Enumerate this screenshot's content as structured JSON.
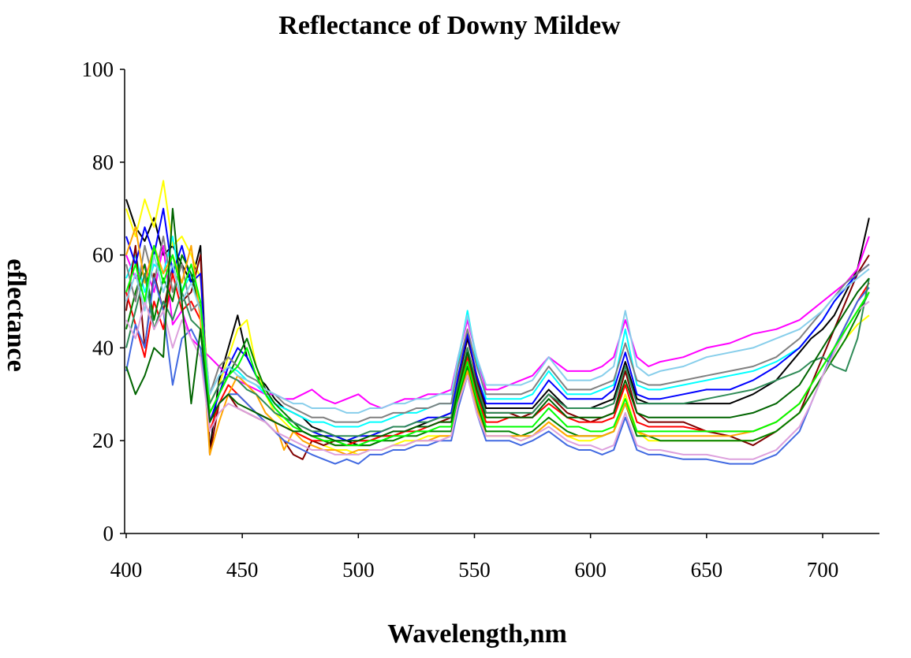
{
  "chart_data": {
    "type": "line",
    "title": "Reflectance of Downy Mildew",
    "xlabel": "Wavelength,nm",
    "ylabel": "eflectance",
    "xlim": [
      400,
      722
    ],
    "ylim": [
      0,
      100
    ],
    "x_ticks": [
      400,
      450,
      500,
      550,
      600,
      650,
      700
    ],
    "y_ticks": [
      0,
      20,
      40,
      60,
      80,
      100
    ],
    "grid": false,
    "legend": "none",
    "wavelengths": [
      400,
      404,
      408,
      412,
      416,
      420,
      424,
      428,
      432,
      436,
      440,
      444,
      448,
      452,
      456,
      460,
      464,
      468,
      472,
      476,
      480,
      485,
      490,
      495,
      500,
      505,
      510,
      515,
      520,
      525,
      530,
      535,
      540,
      543,
      547,
      551,
      555,
      560,
      565,
      570,
      575,
      582,
      590,
      595,
      600,
      605,
      610,
      615,
      620,
      625,
      630,
      640,
      650,
      660,
      670,
      680,
      690,
      695,
      700,
      705,
      710,
      715,
      720
    ],
    "series": [
      {
        "color": "#000000",
        "values": [
          72,
          66,
          63,
          68,
          60,
          62,
          58,
          54,
          62,
          18,
          33,
          40,
          47,
          38,
          34,
          32,
          29,
          27,
          26,
          25,
          23,
          22,
          21,
          20,
          19,
          19,
          20,
          21,
          22,
          23,
          24,
          25,
          26,
          33,
          42,
          34,
          27,
          27,
          27,
          27,
          27,
          31,
          27,
          27,
          27,
          28,
          29,
          37,
          29,
          28,
          28,
          28,
          28,
          28,
          30,
          33,
          39,
          42,
          44,
          47,
          52,
          57,
          68
        ]
      },
      {
        "color": "#ff00ff",
        "values": [
          60,
          55,
          58,
          52,
          62,
          45,
          48,
          42,
          40,
          38,
          36,
          34,
          33,
          32,
          31,
          30,
          30,
          29,
          29,
          30,
          31,
          29,
          28,
          29,
          30,
          28,
          27,
          28,
          29,
          29,
          30,
          30,
          31,
          38,
          46,
          38,
          31,
          31,
          32,
          33,
          34,
          38,
          35,
          35,
          35,
          36,
          38,
          46,
          38,
          36,
          37,
          38,
          40,
          41,
          43,
          44,
          46,
          48,
          50,
          52,
          54,
          57,
          64
        ]
      },
      {
        "color": "#ffff00",
        "values": [
          70,
          64,
          72,
          66,
          76,
          62,
          64,
          60,
          55,
          28,
          32,
          38,
          44,
          46,
          36,
          30,
          26,
          24,
          22,
          21,
          20,
          19,
          18,
          18,
          17,
          18,
          18,
          19,
          20,
          20,
          21,
          21,
          21,
          28,
          36,
          28,
          21,
          21,
          21,
          20,
          21,
          24,
          21,
          20,
          20,
          21,
          22,
          30,
          22,
          20,
          20,
          20,
          20,
          20,
          20,
          22,
          26,
          30,
          34,
          38,
          42,
          45,
          47
        ]
      },
      {
        "color": "#00ffff",
        "values": [
          55,
          60,
          52,
          58,
          56,
          64,
          52,
          56,
          50,
          30,
          34,
          36,
          35,
          33,
          32,
          30,
          28,
          27,
          26,
          25,
          24,
          24,
          23,
          23,
          23,
          24,
          24,
          25,
          26,
          26,
          27,
          28,
          28,
          37,
          48,
          37,
          29,
          29,
          29,
          29,
          30,
          35,
          30,
          30,
          30,
          31,
          32,
          44,
          32,
          31,
          31,
          32,
          33,
          34,
          35,
          37,
          40,
          43,
          46,
          50,
          53,
          56,
          58
        ]
      },
      {
        "color": "#800000",
        "values": [
          48,
          62,
          40,
          56,
          48,
          58,
          50,
          52,
          60,
          17,
          28,
          30,
          27,
          26,
          25,
          24,
          22,
          20,
          17,
          16,
          20,
          19,
          20,
          19,
          20,
          20,
          21,
          21,
          22,
          23,
          23,
          24,
          25,
          33,
          43,
          33,
          26,
          26,
          26,
          25,
          26,
          30,
          26,
          25,
          24,
          25,
          26,
          35,
          26,
          24,
          24,
          24,
          22,
          21,
          19,
          22,
          26,
          32,
          38,
          44,
          50,
          56,
          60
        ]
      },
      {
        "color": "#0000ff",
        "values": [
          64,
          58,
          66,
          60,
          70,
          56,
          62,
          54,
          56,
          24,
          30,
          36,
          40,
          38,
          34,
          30,
          27,
          25,
          24,
          23,
          22,
          21,
          21,
          20,
          21,
          21,
          22,
          23,
          23,
          24,
          25,
          25,
          26,
          34,
          43,
          34,
          28,
          28,
          28,
          28,
          28,
          33,
          29,
          29,
          29,
          29,
          31,
          39,
          30,
          29,
          29,
          30,
          31,
          31,
          33,
          36,
          40,
          43,
          46,
          50,
          53,
          56,
          58
        ]
      },
      {
        "color": "#ff0000",
        "values": [
          52,
          45,
          38,
          50,
          44,
          56,
          48,
          50,
          46,
          22,
          28,
          32,
          30,
          28,
          26,
          25,
          24,
          23,
          22,
          21,
          20,
          20,
          19,
          19,
          20,
          20,
          21,
          21,
          22,
          22,
          23,
          24,
          24,
          31,
          38,
          30,
          24,
          24,
          25,
          25,
          25,
          28,
          25,
          24,
          24,
          24,
          25,
          32,
          24,
          23,
          23,
          23,
          22,
          22,
          22,
          24,
          28,
          32,
          36,
          40,
          45,
          50,
          54
        ]
      },
      {
        "color": "#008000",
        "values": [
          44,
          52,
          58,
          46,
          55,
          50,
          60,
          56,
          48,
          26,
          30,
          34,
          38,
          42,
          36,
          31,
          28,
          26,
          24,
          22,
          21,
          20,
          19,
          19,
          19,
          19,
          20,
          20,
          21,
          21,
          22,
          22,
          22,
          29,
          36,
          28,
          22,
          22,
          22,
          21,
          22,
          25,
          22,
          21,
          21,
          21,
          22,
          28,
          21,
          21,
          20,
          20,
          20,
          20,
          20,
          22,
          26,
          30,
          34,
          38,
          42,
          47,
          52
        ]
      },
      {
        "color": "#808080",
        "values": [
          58,
          50,
          62,
          54,
          64,
          52,
          58,
          48,
          50,
          30,
          36,
          38,
          36,
          34,
          33,
          31,
          30,
          28,
          27,
          26,
          25,
          25,
          24,
          24,
          24,
          25,
          25,
          26,
          26,
          27,
          27,
          28,
          28,
          36,
          44,
          36,
          30,
          30,
          30,
          30,
          31,
          36,
          31,
          31,
          31,
          32,
          33,
          41,
          33,
          32,
          32,
          33,
          34,
          35,
          36,
          38,
          42,
          45,
          48,
          51,
          54,
          56,
          58
        ]
      },
      {
        "color": "#ffa500",
        "values": [
          60,
          66,
          54,
          62,
          56,
          60,
          54,
          62,
          46,
          17,
          24,
          30,
          34,
          32,
          30,
          26,
          24,
          18,
          22,
          20,
          19,
          18,
          18,
          17,
          18,
          18,
          18,
          19,
          19,
          20,
          20,
          21,
          21,
          28,
          35,
          27,
          21,
          21,
          21,
          21,
          21,
          24,
          21,
          21,
          21,
          21,
          22,
          28,
          22,
          21,
          21,
          21,
          21,
          21,
          22,
          24,
          28,
          32,
          36,
          40,
          44,
          48,
          52
        ]
      },
      {
        "color": "#4169e1",
        "values": [
          35,
          45,
          40,
          55,
          48,
          32,
          42,
          44,
          40,
          24,
          28,
          30,
          30,
          28,
          26,
          24,
          22,
          20,
          19,
          18,
          17,
          16,
          15,
          16,
          15,
          17,
          17,
          18,
          18,
          19,
          19,
          20,
          20,
          27,
          34,
          26,
          20,
          20,
          20,
          19,
          20,
          22,
          19,
          18,
          18,
          17,
          18,
          25,
          18,
          17,
          17,
          16,
          16,
          15,
          15,
          17,
          22,
          28,
          34,
          40,
          45,
          50,
          53
        ]
      },
      {
        "color": "#2e8b57",
        "values": [
          40,
          48,
          56,
          44,
          50,
          46,
          52,
          46,
          44,
          28,
          32,
          34,
          33,
          31,
          30,
          28,
          26,
          25,
          24,
          23,
          22,
          22,
          21,
          21,
          21,
          22,
          22,
          23,
          23,
          24,
          24,
          25,
          25,
          32,
          40,
          32,
          26,
          26,
          26,
          26,
          26,
          30,
          27,
          27,
          27,
          27,
          28,
          36,
          28,
          28,
          28,
          28,
          29,
          30,
          31,
          33,
          35,
          37,
          38,
          36,
          35,
          42,
          55
        ]
      },
      {
        "color": "#87ceeb",
        "values": [
          50,
          56,
          48,
          60,
          52,
          58,
          50,
          54,
          48,
          30,
          34,
          36,
          34,
          33,
          32,
          31,
          30,
          29,
          28,
          28,
          27,
          27,
          27,
          26,
          26,
          27,
          27,
          28,
          28,
          29,
          29,
          30,
          30,
          38,
          47,
          38,
          32,
          32,
          32,
          32,
          33,
          38,
          33,
          33,
          33,
          34,
          36,
          48,
          36,
          34,
          35,
          36,
          38,
          39,
          40,
          42,
          44,
          46,
          48,
          51,
          53,
          55,
          57
        ]
      },
      {
        "color": "#dda0dd",
        "values": [
          46,
          42,
          50,
          44,
          48,
          40,
          46,
          42,
          38,
          22,
          26,
          28,
          27,
          26,
          25,
          24,
          22,
          21,
          20,
          19,
          18,
          18,
          17,
          17,
          17,
          18,
          18,
          19,
          19,
          20,
          20,
          20,
          21,
          28,
          34,
          26,
          21,
          21,
          21,
          20,
          21,
          23,
          20,
          19,
          19,
          18,
          19,
          26,
          19,
          18,
          18,
          17,
          17,
          16,
          16,
          18,
          23,
          28,
          34,
          39,
          44,
          48,
          50
        ]
      },
      {
        "color": "#00ff00",
        "values": [
          52,
          58,
          50,
          62,
          54,
          60,
          52,
          58,
          50,
          26,
          30,
          34,
          36,
          40,
          34,
          30,
          27,
          25,
          23,
          22,
          21,
          20,
          20,
          19,
          19,
          20,
          20,
          21,
          21,
          22,
          22,
          23,
          23,
          30,
          37,
          29,
          23,
          23,
          23,
          23,
          23,
          27,
          23,
          23,
          22,
          22,
          23,
          29,
          22,
          22,
          22,
          22,
          22,
          22,
          22,
          24,
          28,
          32,
          36,
          40,
          44,
          48,
          52
        ]
      },
      {
        "color": "#006400",
        "values": [
          36,
          30,
          34,
          40,
          38,
          70,
          50,
          28,
          44,
          24,
          28,
          30,
          28,
          27,
          26,
          25,
          24,
          23,
          22,
          22,
          21,
          21,
          20,
          20,
          20,
          21,
          21,
          22,
          22,
          23,
          23,
          24,
          24,
          31,
          39,
          31,
          25,
          25,
          25,
          25,
          25,
          29,
          25,
          25,
          25,
          25,
          26,
          33,
          26,
          25,
          25,
          25,
          25,
          25,
          26,
          28,
          32,
          36,
          40,
          44,
          48,
          52,
          55
        ]
      }
    ]
  }
}
